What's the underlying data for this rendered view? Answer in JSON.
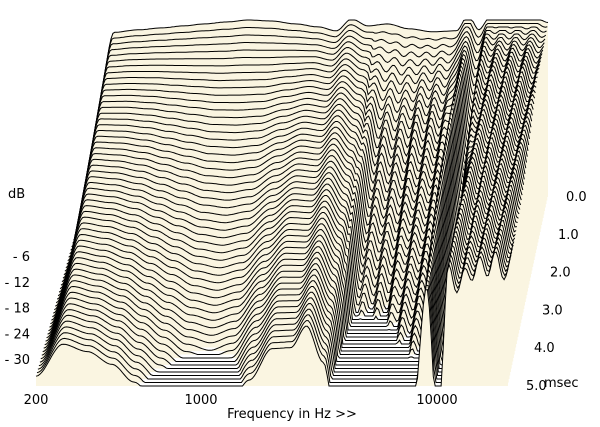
{
  "chart_data": {
    "type": "waterfall",
    "xlabel": "Frequency in Hz >>",
    "ylabel": "dB",
    "x_scale": "log",
    "xlim": [
      200,
      20000
    ],
    "x_ticks": [
      {
        "value": 200,
        "label": "200"
      },
      {
        "value": 1000,
        "label": "1000"
      },
      {
        "value": 10000,
        "label": "10000"
      }
    ],
    "y_ticks": [
      {
        "value": -6,
        "label": "- 6"
      },
      {
        "value": -12,
        "label": "- 12"
      },
      {
        "value": -18,
        "label": "- 18"
      },
      {
        "value": -24,
        "label": "- 24"
      },
      {
        "value": -30,
        "label": "- 30"
      }
    ],
    "ylim": [
      -36,
      0
    ],
    "time_unit": "msec",
    "time_ticks": [
      {
        "value": 0.0,
        "label": "0.0"
      },
      {
        "value": 1.0,
        "label": "1.0"
      },
      {
        "value": 2.0,
        "label": "2.0"
      },
      {
        "value": 3.0,
        "label": "3.0"
      },
      {
        "value": 4.0,
        "label": "4.0"
      },
      {
        "value": 5.0,
        "label": "5.0"
      }
    ],
    "time_range": [
      0.0,
      5.0
    ],
    "slice_count": 55,
    "fill_color": "#faf5e1",
    "line_color": "#000000",
    "features": {
      "freq_hz": [
        200,
        260,
        330,
        420,
        520,
        640,
        800,
        1000,
        1250,
        1600,
        2000,
        2400,
        2800,
        3300,
        4000,
        5000,
        6300,
        8000,
        9000,
        10000,
        11200,
        12500,
        14000,
        16000,
        18000,
        20000
      ],
      "initial_level_db": [
        -34,
        -2.5,
        -2,
        -1.6,
        -1.2,
        -0.8,
        -0.4,
        0,
        -0.2,
        -0.8,
        -1.4,
        -2.2,
        0.2,
        -1.2,
        -0.8,
        -1.8,
        -2.4,
        -2.2,
        1.0,
        -2.0,
        0.6,
        0.8,
        0.6,
        0.4,
        0.2,
        -0.5
      ],
      "decay_db_per_ms": [
        0,
        5.0,
        5.4,
        6.0,
        6.8,
        7.6,
        8.4,
        8.8,
        8.4,
        6.8,
        5.4,
        5.2,
        4.8,
        6.0,
        11.5,
        11.0,
        9.0,
        8.0,
        3.0,
        8.5,
        2.8,
        3.2,
        2.6,
        2.4,
        2.2,
        2.5
      ]
    }
  }
}
